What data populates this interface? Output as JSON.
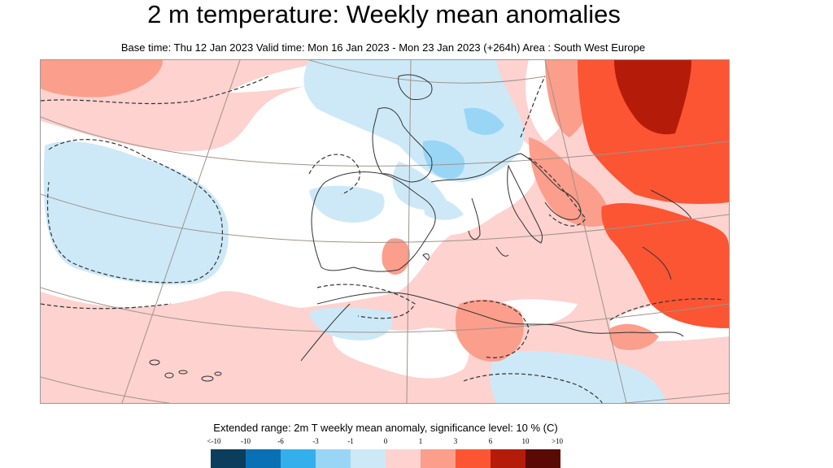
{
  "header": {
    "title": "2 m temperature: Weekly mean anomalies",
    "subtitle": "Base time: Thu 12 Jan 2023 Valid time: Mon 16 Jan 2023 - Mon 23 Jan 2023 (+264h) Area : South West Europe"
  },
  "legend": {
    "title": "Extended range: 2m T weekly mean anomaly, significance level: 10 % (C)",
    "tick_labels": [
      "<-10",
      "-10",
      "-6",
      "-3",
      "-1",
      "0",
      "1",
      "3",
      "6",
      "10",
      ">10"
    ],
    "colors": [
      "#0b3d5c",
      "#0a70b4",
      "#33b0ec",
      "#99d6f5",
      "#cde9f8",
      "#fdd2cf",
      "#fb9e8c",
      "#fb5533",
      "#b51b09",
      "#5a0a05"
    ]
  },
  "map": {
    "colors": {
      "sea": "#ffffff",
      "cold_light": "#cde9f8",
      "cold_medium": "#99d6f5",
      "warm_light": "#fdd2cf",
      "warm_medium": "#fb9e8c",
      "warm_strong": "#fb5533",
      "warm_very_strong": "#b51b09",
      "coastline": "#333333",
      "graticule": "#9e948a",
      "significance_contour": "#333333"
    }
  }
}
